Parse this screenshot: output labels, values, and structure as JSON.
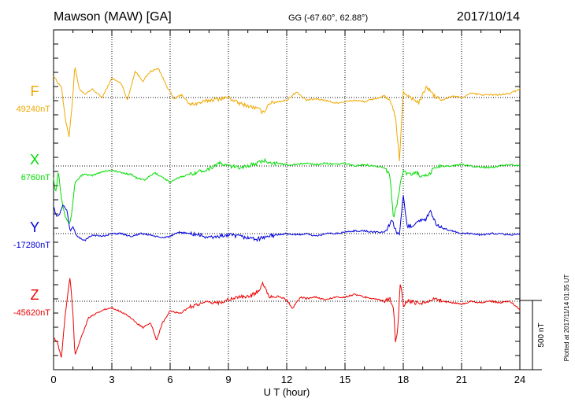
{
  "header": {
    "station": "Mawson (MAW)  [GA]",
    "coords": "GG (-67.60°,  62.88°)",
    "date": "2017/10/14"
  },
  "side_note": "Plotted at 2017/11/14 01:35 UT",
  "chart_data": {
    "type": "line",
    "xlabel": "U T (hour)",
    "x_ticks": [
      0,
      3,
      6,
      9,
      12,
      15,
      18,
      21,
      24
    ],
    "xlim": [
      0,
      24
    ],
    "scale_bar_label": "500 nT",
    "scale_bar_nT": 500,
    "series": [
      {
        "name": "F",
        "baseline_label": "49240nT",
        "baseline_nT": 49240,
        "color": "#f0a800",
        "points": [
          [
            0,
            160
          ],
          [
            0.2,
            110
          ],
          [
            0.4,
            80
          ],
          [
            0.6,
            -150
          ],
          [
            0.8,
            -280
          ],
          [
            0.95,
            -60
          ],
          [
            1.1,
            230
          ],
          [
            1.3,
            70
          ],
          [
            1.6,
            20
          ],
          [
            2,
            60
          ],
          [
            2.5,
            0
          ],
          [
            3,
            140
          ],
          [
            3.5,
            100
          ],
          [
            3.8,
            -20
          ],
          [
            4.2,
            190
          ],
          [
            4.6,
            120
          ],
          [
            5,
            190
          ],
          [
            5.4,
            210
          ],
          [
            5.8,
            90
          ],
          [
            6.2,
            -10
          ],
          [
            6.6,
            20
          ],
          [
            7,
            -50
          ],
          [
            7.5,
            -40
          ],
          [
            8,
            -20
          ],
          [
            8.5,
            -10
          ],
          [
            9,
            0
          ],
          [
            9.5,
            -40
          ],
          [
            10,
            -60
          ],
          [
            10.5,
            -80
          ],
          [
            10.8,
            -110
          ],
          [
            11.1,
            -40
          ],
          [
            11.5,
            -30
          ],
          [
            12,
            -20
          ],
          [
            12.5,
            40
          ],
          [
            13,
            -20
          ],
          [
            13.5,
            -10
          ],
          [
            14,
            -20
          ],
          [
            14.5,
            -40
          ],
          [
            15,
            -30
          ],
          [
            15.5,
            -20
          ],
          [
            16,
            -30
          ],
          [
            16.5,
            -10
          ],
          [
            17,
            10
          ],
          [
            17.4,
            -40
          ],
          [
            17.6,
            -150
          ],
          [
            17.8,
            -450
          ],
          [
            18,
            40
          ],
          [
            18.3,
            10
          ],
          [
            18.8,
            -40
          ],
          [
            19.2,
            80
          ],
          [
            19.6,
            10
          ],
          [
            20,
            -20
          ],
          [
            20.5,
            10
          ],
          [
            21,
            0
          ],
          [
            21.5,
            30
          ],
          [
            22,
            20
          ],
          [
            22.5,
            20
          ],
          [
            23,
            20
          ],
          [
            23.5,
            30
          ],
          [
            24,
            60
          ]
        ]
      },
      {
        "name": "X",
        "baseline_label": "6760nT",
        "baseline_nT": 6760,
        "color": "#00dd00",
        "points": [
          [
            0,
            -80
          ],
          [
            0.1,
            -200
          ],
          [
            0.25,
            -40
          ],
          [
            0.4,
            -230
          ],
          [
            0.6,
            -360
          ],
          [
            0.8,
            -420
          ],
          [
            0.9,
            -380
          ],
          [
            1.1,
            -120
          ],
          [
            1.5,
            -60
          ],
          [
            2,
            -70
          ],
          [
            2.5,
            -40
          ],
          [
            3,
            -30
          ],
          [
            3.5,
            -50
          ],
          [
            4,
            -60
          ],
          [
            4.3,
            -90
          ],
          [
            4.7,
            -100
          ],
          [
            5.2,
            -50
          ],
          [
            5.6,
            -80
          ],
          [
            6,
            -120
          ],
          [
            6.5,
            -80
          ],
          [
            7,
            -60
          ],
          [
            7.5,
            -40
          ],
          [
            8,
            -20
          ],
          [
            8.5,
            20
          ],
          [
            9,
            0
          ],
          [
            9.5,
            -10
          ],
          [
            10,
            0
          ],
          [
            10.5,
            20
          ],
          [
            10.9,
            40
          ],
          [
            11.3,
            20
          ],
          [
            12,
            10
          ],
          [
            12.5,
            10
          ],
          [
            13,
            20
          ],
          [
            13.5,
            10
          ],
          [
            14,
            20
          ],
          [
            14.5,
            10
          ],
          [
            15,
            20
          ],
          [
            15.5,
            0
          ],
          [
            16,
            10
          ],
          [
            16.5,
            0
          ],
          [
            17,
            -10
          ],
          [
            17.3,
            -60
          ],
          [
            17.5,
            -380
          ],
          [
            17.7,
            -260
          ],
          [
            17.85,
            -120
          ],
          [
            18,
            -40
          ],
          [
            18.3,
            -60
          ],
          [
            18.7,
            -50
          ],
          [
            19,
            -80
          ],
          [
            19.3,
            -70
          ],
          [
            19.6,
            -10
          ],
          [
            20,
            0
          ],
          [
            20.5,
            0
          ],
          [
            21,
            10
          ],
          [
            21.5,
            0
          ],
          [
            22,
            -10
          ],
          [
            22.5,
            -10
          ],
          [
            23,
            0
          ],
          [
            23.5,
            10
          ],
          [
            24,
            0
          ]
        ]
      },
      {
        "name": "Y",
        "baseline_label": "-17280nT",
        "baseline_nT": -17280,
        "color": "#0000dd",
        "points": [
          [
            0,
            200
          ],
          [
            0.15,
            120
          ],
          [
            0.3,
            140
          ],
          [
            0.5,
            210
          ],
          [
            0.7,
            160
          ],
          [
            0.85,
            20
          ],
          [
            1.0,
            50
          ],
          [
            1.2,
            -20
          ],
          [
            1.6,
            -50
          ],
          [
            2,
            -10
          ],
          [
            2.5,
            -20
          ],
          [
            3,
            0
          ],
          [
            3.5,
            0
          ],
          [
            4,
            -20
          ],
          [
            4.5,
            0
          ],
          [
            5,
            -10
          ],
          [
            5.5,
            -30
          ],
          [
            6,
            -20
          ],
          [
            6.5,
            10
          ],
          [
            7,
            0
          ],
          [
            7.5,
            -10
          ],
          [
            8,
            -30
          ],
          [
            8.5,
            -20
          ],
          [
            9,
            -10
          ],
          [
            9.5,
            -20
          ],
          [
            10,
            -30
          ],
          [
            10.5,
            -40
          ],
          [
            11,
            -20
          ],
          [
            11.5,
            -10
          ],
          [
            12,
            0
          ],
          [
            12.5,
            -10
          ],
          [
            13,
            0
          ],
          [
            13.5,
            -20
          ],
          [
            14,
            0
          ],
          [
            14.5,
            0
          ],
          [
            15,
            10
          ],
          [
            15.5,
            20
          ],
          [
            16,
            20
          ],
          [
            16.5,
            10
          ],
          [
            17,
            10
          ],
          [
            17.2,
            40
          ],
          [
            17.4,
            100
          ],
          [
            17.6,
            30
          ],
          [
            17.8,
            -20
          ],
          [
            18,
            270
          ],
          [
            18.2,
            50
          ],
          [
            18.5,
            60
          ],
          [
            18.8,
            100
          ],
          [
            19.1,
            90
          ],
          [
            19.4,
            160
          ],
          [
            19.7,
            60
          ],
          [
            20,
            40
          ],
          [
            20.5,
            20
          ],
          [
            21,
            0
          ],
          [
            21.5,
            0
          ],
          [
            22,
            -10
          ],
          [
            22.5,
            0
          ],
          [
            23,
            0
          ],
          [
            23.5,
            -10
          ],
          [
            24,
            0
          ]
        ]
      },
      {
        "name": "Z",
        "baseline_label": "-45620nT",
        "baseline_nT": -45620,
        "color": "#ee0000",
        "points": [
          [
            0,
            -260
          ],
          [
            0.2,
            -300
          ],
          [
            0.4,
            -410
          ],
          [
            0.6,
            -100
          ],
          [
            0.85,
            180
          ],
          [
            1.0,
            -100
          ],
          [
            1.1,
            -390
          ],
          [
            1.4,
            -270
          ],
          [
            1.8,
            -120
          ],
          [
            2.2,
            -90
          ],
          [
            2.6,
            -60
          ],
          [
            3,
            -50
          ],
          [
            3.4,
            -70
          ],
          [
            3.8,
            -100
          ],
          [
            4.2,
            -150
          ],
          [
            4.6,
            -190
          ],
          [
            5.0,
            -160
          ],
          [
            5.3,
            -280
          ],
          [
            5.6,
            -160
          ],
          [
            6,
            -70
          ],
          [
            6.5,
            -90
          ],
          [
            7,
            -40
          ],
          [
            7.5,
            -20
          ],
          [
            8,
            -10
          ],
          [
            8.5,
            -10
          ],
          [
            9,
            10
          ],
          [
            9.5,
            30
          ],
          [
            10,
            30
          ],
          [
            10.5,
            70
          ],
          [
            10.8,
            130
          ],
          [
            11.1,
            30
          ],
          [
            11.5,
            40
          ],
          [
            12,
            10
          ],
          [
            12.3,
            -50
          ],
          [
            12.7,
            30
          ],
          [
            13,
            20
          ],
          [
            13.5,
            30
          ],
          [
            14,
            10
          ],
          [
            14.5,
            30
          ],
          [
            15,
            30
          ],
          [
            15.5,
            50
          ],
          [
            16,
            30
          ],
          [
            16.5,
            20
          ],
          [
            17,
            0
          ],
          [
            17.3,
            20
          ],
          [
            17.5,
            -60
          ],
          [
            17.6,
            -300
          ],
          [
            17.7,
            -240
          ],
          [
            17.85,
            150
          ],
          [
            18,
            -30
          ],
          [
            18.2,
            0
          ],
          [
            18.6,
            -10
          ],
          [
            19,
            -10
          ],
          [
            19.3,
            0
          ],
          [
            19.7,
            20
          ],
          [
            20,
            0
          ],
          [
            20.5,
            -10
          ],
          [
            21,
            -20
          ],
          [
            21.5,
            0
          ],
          [
            22,
            -10
          ],
          [
            22.5,
            0
          ],
          [
            23,
            -10
          ],
          [
            23.5,
            0
          ],
          [
            24,
            -60
          ]
        ]
      }
    ]
  }
}
